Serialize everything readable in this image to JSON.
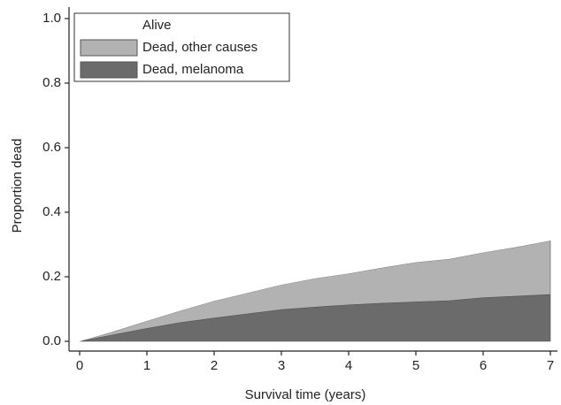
{
  "chart_data": {
    "type": "stacked-area",
    "xlabel": "Survival time (years)",
    "ylabel": "Proportion dead",
    "x": [
      0,
      0.5,
      1,
      1.5,
      2,
      2.5,
      3,
      3.5,
      4,
      4.5,
      5,
      5.5,
      6,
      6.5,
      7
    ],
    "series": [
      {
        "name": "Alive",
        "color": "#ffffff",
        "values": [
          1,
          0.97,
          0.937,
          0.905,
          0.875,
          0.85,
          0.825,
          0.805,
          0.79,
          0.772,
          0.755,
          0.745,
          0.725,
          0.708,
          0.688
        ]
      },
      {
        "name": "Dead, other causes",
        "color": "#b2b2b2",
        "values": [
          0,
          0.01,
          0.023,
          0.037,
          0.053,
          0.065,
          0.077,
          0.089,
          0.097,
          0.11,
          0.123,
          0.129,
          0.14,
          0.152,
          0.167
        ]
      },
      {
        "name": "Dead, melanoma",
        "color": "#6b6b6b",
        "values": [
          0,
          0.02,
          0.04,
          0.058,
          0.072,
          0.085,
          0.098,
          0.106,
          0.113,
          0.118,
          0.122,
          0.126,
          0.135,
          0.14,
          0.145
        ]
      }
    ],
    "xlim": [
      0,
      7
    ],
    "xticks": [
      0,
      1,
      2,
      3,
      4,
      5,
      6,
      7
    ],
    "ylim": [
      0,
      1
    ],
    "yticks": [
      {
        "value": 0,
        "label": "0.0"
      },
      0.2,
      0.4,
      0.6,
      0.8,
      {
        "value": 1,
        "label": "1.0"
      }
    ],
    "legend": "upper-left"
  }
}
